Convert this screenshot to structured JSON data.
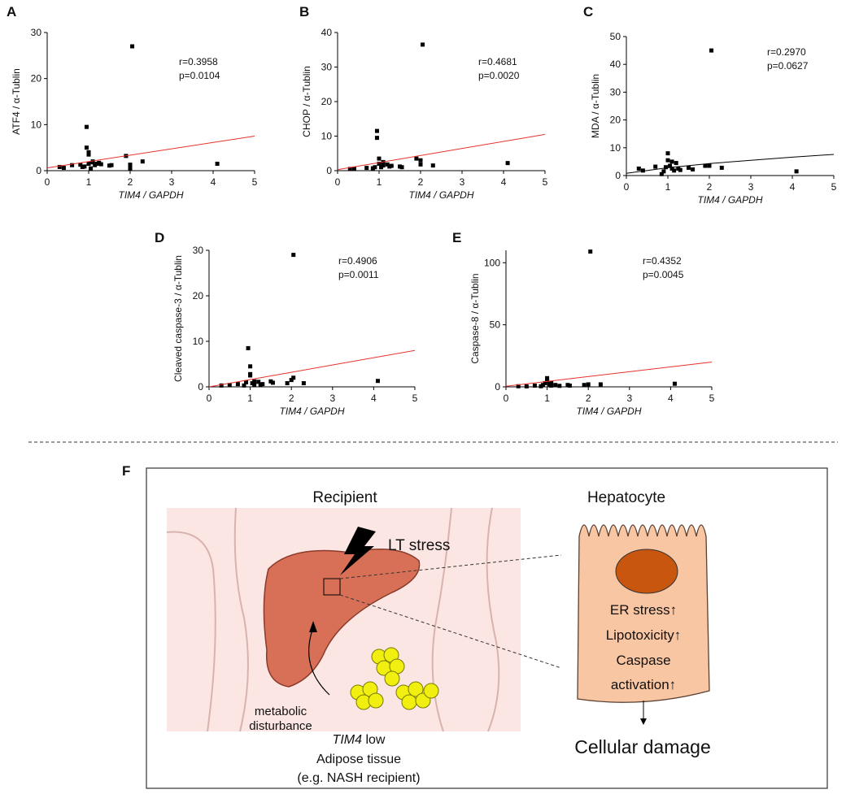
{
  "chart_data": [
    {
      "type": "scatter",
      "panel": "A",
      "ylabel": "ATF4 / α-Tublin",
      "xlabel": "TIM4 / GAPDH",
      "annotations": [
        "r=0.3958",
        "p=0.0104"
      ],
      "x": [
        0.3,
        0.4,
        0.6,
        0.8,
        0.85,
        0.9,
        0.95,
        0.95,
        1.0,
        1.0,
        1.0,
        1.05,
        1.1,
        1.1,
        1.15,
        1.2,
        1.25,
        1.3,
        1.5,
        1.55,
        1.9,
        2.0,
        2.0,
        2.05,
        2.3,
        4.1
      ],
      "y": [
        0.8,
        0.6,
        1.2,
        1.3,
        0.8,
        0.9,
        5,
        9.5,
        3.5,
        4,
        1.5,
        0.5,
        1.8,
        2,
        1.2,
        1.5,
        1.7,
        1.4,
        1.1,
        1.2,
        3.2,
        0.5,
        1.3,
        27,
        2,
        1.5
      ],
      "color": "#000000",
      "fit": {
        "x": [
          0,
          5
        ],
        "y": [
          0.6,
          7.5
        ],
        "color": "#e8302a"
      },
      "xlim": [
        0,
        5
      ],
      "ylim": [
        0,
        30
      ],
      "xticks": [
        0,
        1,
        2,
        3,
        4,
        5
      ],
      "yticks": [
        0,
        10,
        20,
        30
      ]
    },
    {
      "type": "scatter",
      "panel": "B",
      "ylabel": "CHOP / α-Tublin",
      "xlabel": "TIM4 / GAPDH",
      "annotations": [
        "r=0.4681",
        "p=0.0020"
      ],
      "x": [
        0.3,
        0.4,
        0.7,
        0.85,
        0.9,
        0.95,
        0.95,
        1.0,
        1.0,
        1.05,
        1.1,
        1.1,
        1.2,
        1.25,
        1.3,
        1.5,
        1.55,
        1.9,
        2.0,
        2.0,
        2.05,
        2.3,
        4.1
      ],
      "y": [
        0.5,
        0.6,
        0.8,
        0.7,
        1,
        11.5,
        9.5,
        3.5,
        2,
        1,
        2.5,
        1.5,
        1.8,
        1.2,
        1.4,
        1.2,
        1,
        3.5,
        1.8,
        3,
        36.5,
        1.5,
        2.2
      ],
      "color": "#000000",
      "fit": {
        "x": [
          0,
          5
        ],
        "y": [
          0.3,
          10.5
        ],
        "color": "#e8302a"
      },
      "xlim": [
        0,
        5
      ],
      "ylim": [
        0,
        40
      ],
      "xticks": [
        0,
        1,
        2,
        3,
        4,
        5
      ],
      "yticks": [
        0,
        10,
        20,
        30,
        40
      ]
    },
    {
      "type": "scatter",
      "panel": "C",
      "ylabel": "MDA / α-Tublin",
      "xlabel": "TIM4 / GAPDH",
      "annotations": [
        "r=0.2970",
        "p=0.0627"
      ],
      "x": [
        0.3,
        0.4,
        0.7,
        0.85,
        0.9,
        0.95,
        1.0,
        1.0,
        1.05,
        1.1,
        1.1,
        1.15,
        1.2,
        1.25,
        1.3,
        1.5,
        1.6,
        1.9,
        2.0,
        2.05,
        2.3,
        4.1
      ],
      "y": [
        2.5,
        1.8,
        3.2,
        0.5,
        1.5,
        3,
        8,
        5.5,
        3.5,
        2.5,
        5,
        1.8,
        4.5,
        2.5,
        2,
        2.8,
        2.2,
        3.5,
        3.5,
        45,
        2.8,
        1.5
      ],
      "color": "#000000",
      "fit": {
        "x": [
          0,
          1,
          2,
          3,
          4,
          5
        ],
        "y": [
          0.8,
          2.8,
          4.3,
          5.5,
          6.6,
          7.6
        ],
        "color": "#000000"
      },
      "xlim": [
        0,
        5
      ],
      "ylim": [
        0,
        50
      ],
      "xticks": [
        0,
        1,
        2,
        3,
        4,
        5
      ],
      "yticks": [
        0,
        10,
        20,
        30,
        40,
        50
      ]
    },
    {
      "type": "scatter",
      "panel": "D",
      "ylabel": "Cleaved caspase-3 / α-Tublin",
      "xlabel": "TIM4 / GAPDH",
      "annotations": [
        "r=0.4906",
        "p=0.0011"
      ],
      "x": [
        0.3,
        0.5,
        0.7,
        0.85,
        0.9,
        0.95,
        1.0,
        1.0,
        1.0,
        1.05,
        1.1,
        1.1,
        1.2,
        1.25,
        1.3,
        1.5,
        1.55,
        1.9,
        2.0,
        2.05,
        2.05,
        2.3,
        4.1
      ],
      "y": [
        0.3,
        0.4,
        0.6,
        0.3,
        1,
        8.5,
        4.5,
        2.5,
        2.8,
        0.8,
        1.2,
        0.5,
        1.1,
        0.4,
        0.6,
        1.2,
        0.9,
        0.8,
        1.5,
        2,
        29,
        0.8,
        1.3
      ],
      "color": "#000000",
      "fit": {
        "x": [
          0,
          5
        ],
        "y": [
          0,
          8
        ],
        "color": "#e8302a"
      },
      "xlim": [
        0,
        5
      ],
      "ylim": [
        0,
        30
      ],
      "xticks": [
        0,
        1,
        2,
        3,
        4,
        5
      ],
      "yticks": [
        0,
        10,
        20,
        30
      ]
    },
    {
      "type": "scatter",
      "panel": "E",
      "ylabel": "Caspase-8 / α-Tublin",
      "xlabel": "TIM4 / GAPDH",
      "annotations": [
        "r=0.4352",
        "p=0.0045"
      ],
      "x": [
        0.3,
        0.5,
        0.7,
        0.85,
        0.9,
        0.95,
        1.0,
        1.0,
        1.05,
        1.1,
        1.1,
        1.2,
        1.3,
        1.5,
        1.55,
        1.9,
        2.0,
        2.05,
        2.3,
        4.1
      ],
      "y": [
        0.5,
        0.4,
        1,
        0.5,
        1.5,
        3,
        7,
        5,
        2,
        1,
        3,
        1.5,
        0.8,
        1.5,
        1,
        1.5,
        2,
        109,
        2,
        2.5
      ],
      "color": "#000000",
      "fit": {
        "x": [
          0,
          5
        ],
        "y": [
          0.5,
          20
        ],
        "color": "#e8302a"
      },
      "xlim": [
        0,
        5
      ],
      "ylim": [
        0,
        110
      ],
      "xticks": [
        0,
        1,
        2,
        3,
        4,
        5
      ],
      "yticks": [
        0,
        50,
        100
      ]
    }
  ],
  "diagram": {
    "panel": "F",
    "recipient": "Recipient",
    "hepatocyte": "Hepatocyte",
    "stress": "LT stress",
    "cell_effects": [
      "ER stress↑",
      "Lipotoxicity↑",
      "Caspase",
      "activation↑"
    ],
    "arrow_label": [
      "metabolic",
      "disturbance"
    ],
    "gene": "TIM4",
    "gene_state": " low",
    "tissue": "Adipose tissue",
    "example": "(e.g. NASH recipient)",
    "outcome": "Cellular damage"
  }
}
